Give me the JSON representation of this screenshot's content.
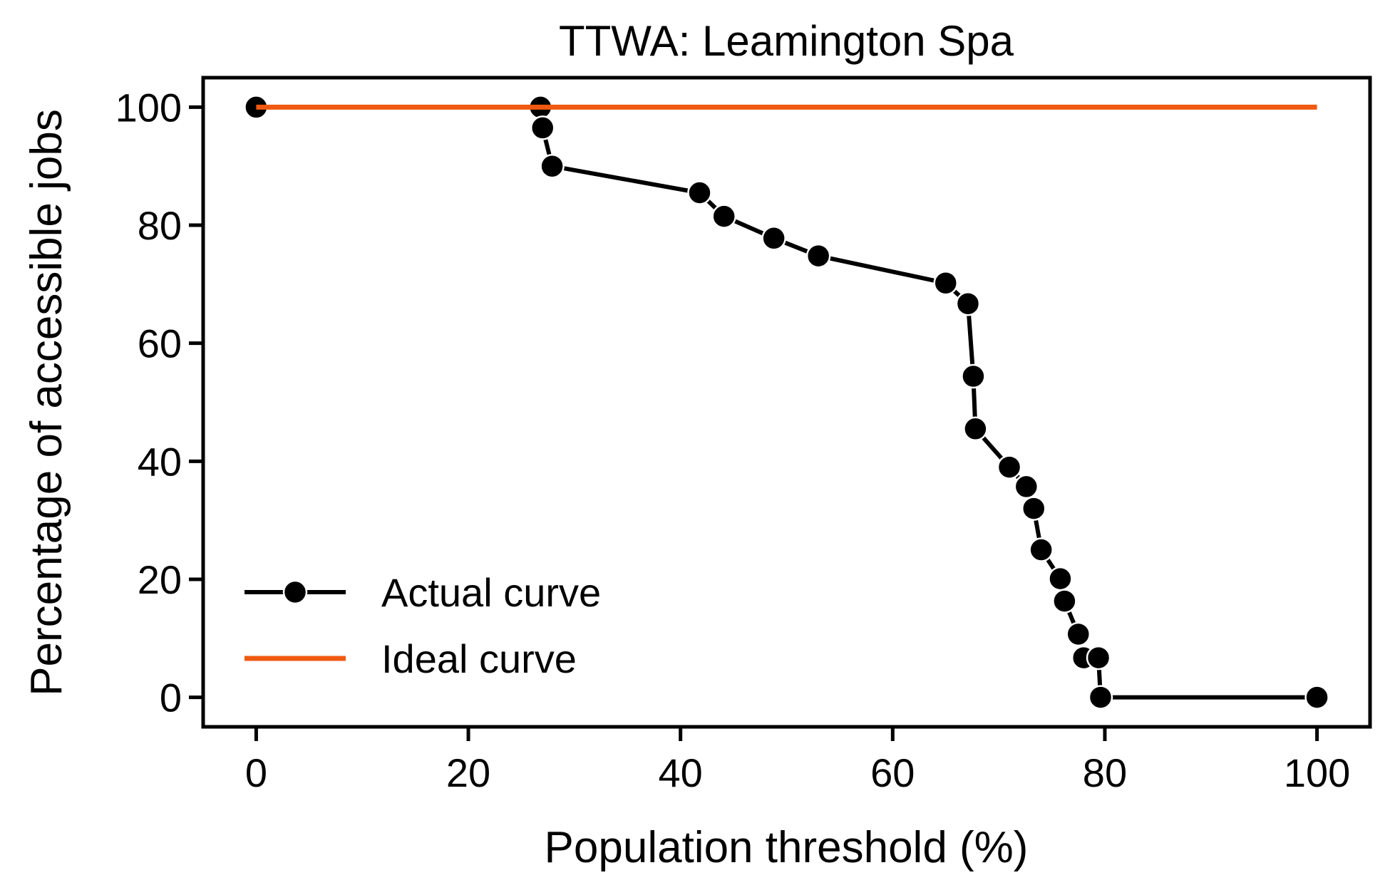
{
  "chart_data": {
    "type": "line",
    "title": "TTWA: Leamington Spa",
    "xlabel": "Population threshold (%)",
    "ylabel": "Percentage of accessible jobs",
    "xlim": [
      -5,
      105
    ],
    "ylim": [
      -5,
      105
    ],
    "xticks": [
      0,
      20,
      40,
      60,
      80,
      100
    ],
    "yticks": [
      0,
      20,
      40,
      60,
      80,
      100
    ],
    "xtick_labels": [
      "0",
      "20",
      "40",
      "60",
      "80",
      "100"
    ],
    "ytick_labels": [
      "0",
      "20",
      "40",
      "60",
      "80",
      "100"
    ],
    "grid": false,
    "legend_position": "lower-left",
    "series": [
      {
        "name": "Actual curve",
        "color": "#000000",
        "marker": "circle",
        "x": [
          0,
          26.8,
          27.0,
          27.9,
          41.8,
          44.1,
          48.8,
          53.0,
          65.0,
          67.1,
          67.6,
          67.8,
          71.0,
          72.6,
          73.3,
          74.0,
          75.8,
          76.2,
          77.5,
          78.0,
          79.4,
          79.6,
          100
        ],
        "y": [
          100,
          100,
          96.5,
          90.0,
          85.5,
          81.5,
          77.8,
          74.8,
          70.2,
          66.7,
          54.4,
          45.5,
          39.0,
          35.7,
          32.0,
          25.0,
          20.1,
          16.3,
          10.7,
          6.7,
          6.7,
          0,
          0
        ]
      },
      {
        "name": "Ideal curve",
        "color": "#f05a10",
        "marker": "none",
        "x": [
          0,
          100
        ],
        "y": [
          100,
          100
        ]
      }
    ]
  }
}
